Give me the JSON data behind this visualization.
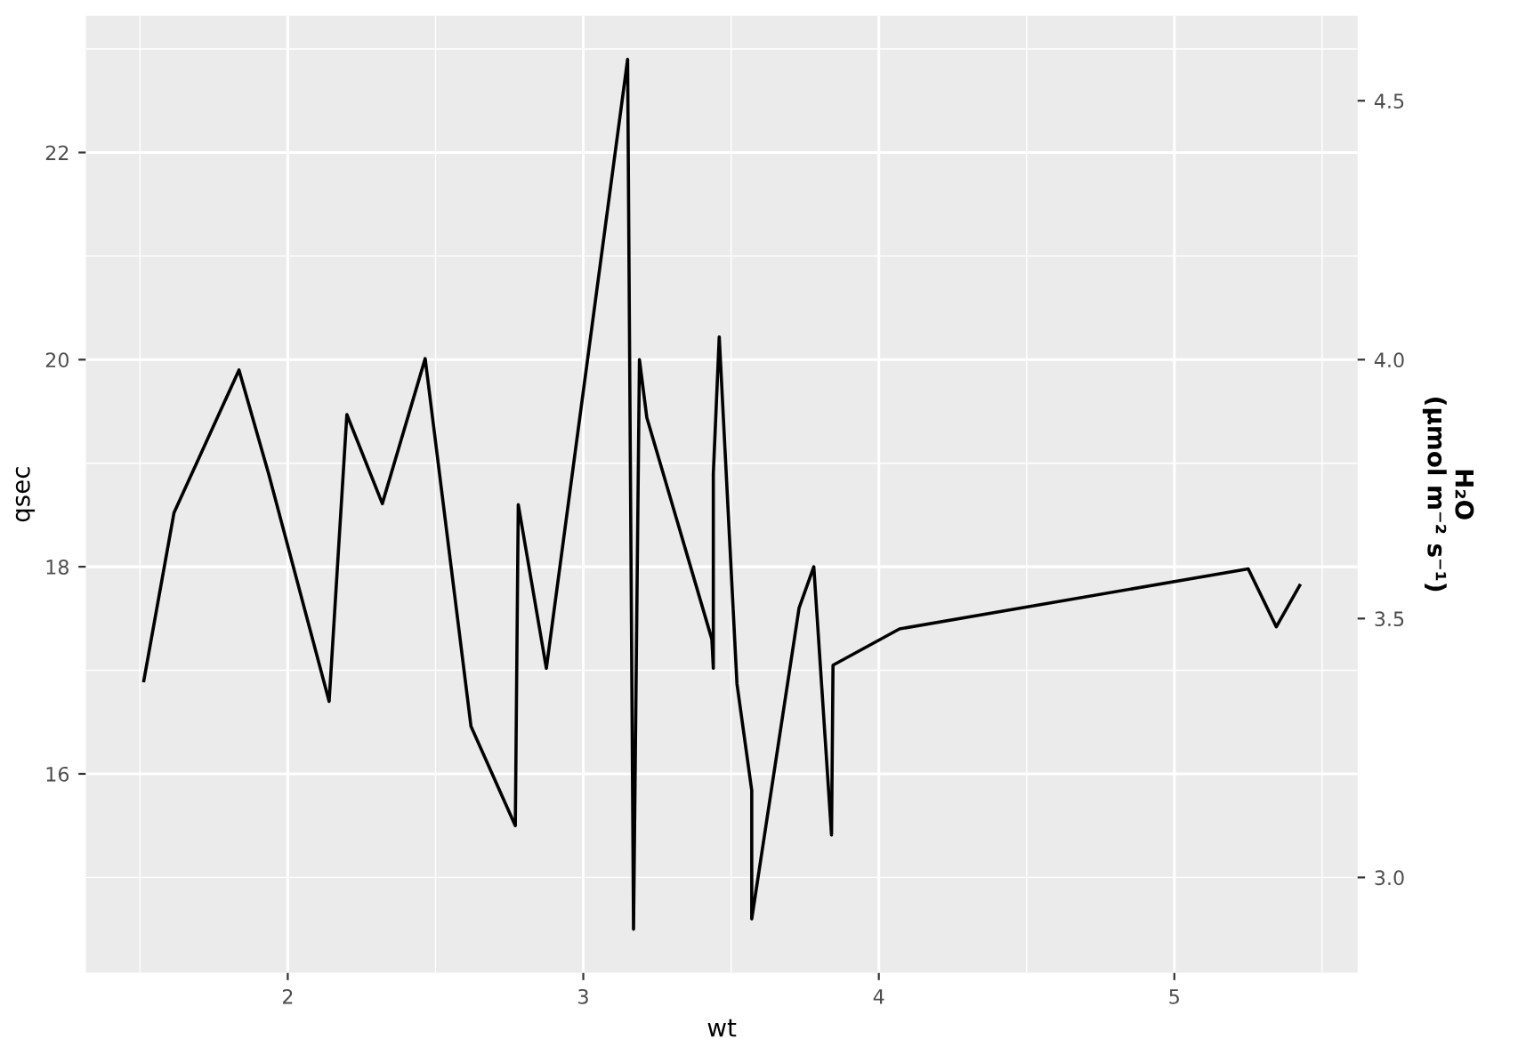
{
  "chart_data": {
    "type": "line",
    "xlabel": "wt",
    "ylabel": "qsec",
    "y2label": "H₂O\n(µmol m⁻² s⁻¹)",
    "x": [
      1.513,
      1.615,
      1.835,
      1.935,
      2.14,
      2.2,
      2.32,
      2.465,
      2.62,
      2.77,
      2.78,
      2.875,
      3.15,
      3.17,
      3.19,
      3.215,
      3.435,
      3.44,
      3.44,
      3.44,
      3.46,
      3.52,
      3.57,
      3.57,
      3.73,
      3.78,
      3.84,
      3.845,
      4.07,
      5.25,
      5.345,
      5.424
    ],
    "series": [
      {
        "color": "#000000",
        "values": [
          16.9,
          18.52,
          19.9,
          18.9,
          16.7,
          19.47,
          18.61,
          20.01,
          16.46,
          15.5,
          18.6,
          17.02,
          22.9,
          14.5,
          20.0,
          19.44,
          17.3,
          17.02,
          18.3,
          18.9,
          20.22,
          16.87,
          15.84,
          14.6,
          17.6,
          18.0,
          15.41,
          17.05,
          17.4,
          17.98,
          17.42,
          17.82
        ]
      }
    ],
    "xlim": [
      1.317,
      5.62
    ],
    "xticks": [
      2,
      3,
      4,
      5
    ],
    "ylim": [
      14.08,
      23.32
    ],
    "yticks": [
      16,
      18,
      20,
      22
    ],
    "y2lim": [
      2.816,
      4.664
    ],
    "y2ticks": [
      {
        "value": 3,
        "label": "3.0"
      },
      3.5,
      {
        "value": 4,
        "label": "4.0"
      },
      4.5
    ],
    "grid": true
  }
}
